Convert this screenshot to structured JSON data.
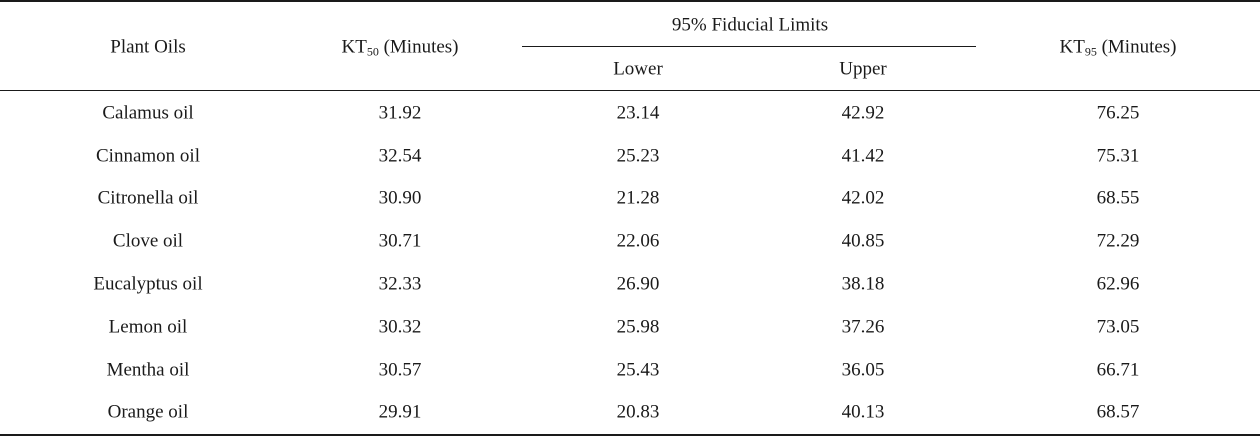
{
  "table": {
    "headers": {
      "plant_oils": "Plant Oils",
      "kt50_prefix": "KT",
      "kt50_sub": "50",
      "kt50_suffix": " (Minutes)",
      "fiducial": "95% Fiducial Limits",
      "lower": "Lower",
      "upper": "Upper",
      "kt95_prefix": "KT",
      "kt95_sub": "95",
      "kt95_suffix": " (Minutes)"
    },
    "rows": [
      {
        "oil": "Calamus oil",
        "kt50": "31.92",
        "lower": "23.14",
        "upper": "42.92",
        "kt95": "76.25"
      },
      {
        "oil": "Cinnamon oil",
        "kt50": "32.54",
        "lower": "25.23",
        "upper": "41.42",
        "kt95": "75.31"
      },
      {
        "oil": "Citronella oil",
        "kt50": "30.90",
        "lower": "21.28",
        "upper": "42.02",
        "kt95": "68.55"
      },
      {
        "oil": "Clove oil",
        "kt50": "30.71",
        "lower": "22.06",
        "upper": "40.85",
        "kt95": "72.29"
      },
      {
        "oil": "Eucalyptus oil",
        "kt50": "32.33",
        "lower": "26.90",
        "upper": "38.18",
        "kt95": "62.96"
      },
      {
        "oil": "Lemon oil",
        "kt50": "30.32",
        "lower": "25.98",
        "upper": "37.26",
        "kt95": "73.05"
      },
      {
        "oil": "Mentha oil",
        "kt50": "30.57",
        "lower": "25.43",
        "upper": "36.05",
        "kt95": "66.71"
      },
      {
        "oil": "Orange oil",
        "kt50": "29.91",
        "lower": "20.83",
        "upper": "40.13",
        "kt95": "68.57"
      }
    ]
  }
}
